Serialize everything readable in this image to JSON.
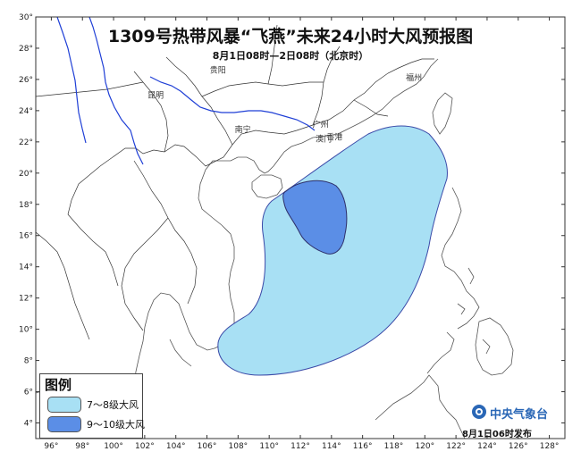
{
  "title": "1309号热带风暴“飞燕”未来24小时大风预报图",
  "subtitle": "8月1日08时—2日08时（北京时）",
  "legend": {
    "title": "图例",
    "items": [
      {
        "label": "7～8级大风",
        "color": "#a8e0f4"
      },
      {
        "label": "9～10级大风",
        "color": "#5b8ee6"
      }
    ]
  },
  "publisher": "中央气象台",
  "issue_time": "8月1日06时发布",
  "axes": {
    "lon_labels": [
      "96°",
      "98°",
      "100°",
      "102°",
      "104°",
      "106°",
      "108°",
      "110°",
      "112°",
      "114°",
      "116°",
      "118°",
      "120°",
      "122°",
      "124°",
      "126°",
      "128°"
    ],
    "lat_labels": [
      "4°",
      "6°",
      "8°",
      "10°",
      "12°",
      "14°",
      "16°",
      "18°",
      "20°",
      "22°",
      "24°",
      "26°",
      "28°",
      "30°"
    ],
    "lon_range": [
      95,
      129
    ],
    "lat_range": [
      3,
      30
    ]
  },
  "cities": [
    {
      "name": "贵阳",
      "lon": 106.7,
      "lat": 26.6
    },
    {
      "name": "昆明",
      "lon": 102.7,
      "lat": 25.0
    },
    {
      "name": "南宁",
      "lon": 108.3,
      "lat": 22.8
    },
    {
      "name": "广州",
      "lon": 113.3,
      "lat": 23.1
    },
    {
      "name": "香港",
      "lon": 114.2,
      "lat": 22.3
    },
    {
      "name": "澳门",
      "lon": 113.5,
      "lat": 22.2
    },
    {
      "name": "福州",
      "lon": 119.3,
      "lat": 26.1
    }
  ],
  "colors": {
    "gale_7_8": "#a8e0f4",
    "gale_9_10": "#5b8ee6",
    "outline": "#3b4aa8",
    "coast": "#555555",
    "rivers": "#1f3fd6"
  }
}
